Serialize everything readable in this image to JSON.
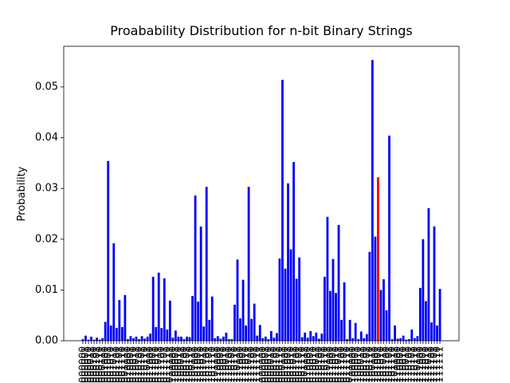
{
  "chart_data": {
    "type": "bar",
    "title": "Proabability Distribution for n-bit Binary Strings",
    "y_label": "Probability",
    "categories": [
      "0000000",
      "0000001",
      "0000010",
      "0000011",
      "0000100",
      "0000101",
      "0000110",
      "0000111",
      "0001000",
      "0001001",
      "0001010",
      "0001011",
      "0001100",
      "0001101",
      "0001110",
      "0001111",
      "0010000",
      "0010001",
      "0010010",
      "0010011",
      "0010100",
      "0010101",
      "0010110",
      "0010111",
      "0011000",
      "0011001",
      "0011010",
      "0011011",
      "0011100",
      "0011101",
      "0011110",
      "0011111",
      "0100000",
      "0100001",
      "0100010",
      "0100011",
      "0100100",
      "0100101",
      "0100110",
      "0100111",
      "0101000",
      "0101001",
      "0101010",
      "0101011",
      "0101100",
      "0101101",
      "0101110",
      "0101111",
      "0110000",
      "0110001",
      "0110010",
      "0110011",
      "0110100",
      "0110101",
      "0110110",
      "0110111",
      "0111000",
      "0111001",
      "0111010",
      "0111011",
      "0111100",
      "0111101",
      "0111110",
      "0111111",
      "1000000",
      "1000001",
      "1000010",
      "1000011",
      "1000100",
      "1000101",
      "1000110",
      "1000111",
      "1001000",
      "1001001",
      "1001010",
      "1001011",
      "1001100",
      "1001101",
      "1001110",
      "1001111",
      "1010000",
      "1010001",
      "1010010",
      "1010011",
      "1010100",
      "1010101",
      "1010110",
      "1010111",
      "1011000",
      "1011001",
      "1011010",
      "1011011",
      "1011100",
      "1011101",
      "1011110",
      "1011111",
      "1100000",
      "1100001",
      "1100010",
      "1100011",
      "1100100",
      "1100101",
      "1100110",
      "1100111",
      "1101000",
      "1101001",
      "1101010",
      "1101011",
      "1101100",
      "1101101",
      "1101110",
      "1101111",
      "1110000",
      "1110001",
      "1110010",
      "1110011",
      "1110100",
      "1110101",
      "1110110",
      "1110111",
      "1111000",
      "1111001",
      "1111010",
      "1111011",
      "1111100",
      "1111101",
      "1111110",
      "1111111"
    ],
    "values": [
      0.0003,
      0.001,
      0.0002,
      0.0008,
      0.0002,
      0.0006,
      0.0002,
      0.0005,
      0.0037,
      0.0354,
      0.003,
      0.0192,
      0.0025,
      0.008,
      0.0027,
      0.009,
      0.0003,
      0.0009,
      0.0005,
      0.0008,
      0.0003,
      0.0009,
      0.0004,
      0.0008,
      0.0014,
      0.0126,
      0.0027,
      0.0134,
      0.0025,
      0.0123,
      0.0022,
      0.0079,
      0.0006,
      0.002,
      0.0008,
      0.0008,
      0.0003,
      0.0008,
      0.0007,
      0.0088,
      0.0286,
      0.0077,
      0.0225,
      0.0028,
      0.0303,
      0.0041,
      0.0087,
      0.0005,
      0.0009,
      0.0004,
      0.0008,
      0.0016,
      0.0003,
      0.0003,
      0.0071,
      0.016,
      0.0044,
      0.012,
      0.003,
      0.0303,
      0.0043,
      0.0073,
      0.001,
      0.0031,
      0.0005,
      0.0008,
      0.0003,
      0.0019,
      0.0006,
      0.0015,
      0.0162,
      0.0514,
      0.0142,
      0.031,
      0.018,
      0.0352,
      0.0122,
      0.0164,
      0.0007,
      0.0016,
      0.0006,
      0.0019,
      0.0009,
      0.0016,
      0.0004,
      0.0014,
      0.0126,
      0.0244,
      0.0098,
      0.0161,
      0.0094,
      0.0228,
      0.0041,
      0.0115,
      0.0003,
      0.0041,
      0.0005,
      0.0035,
      0.0003,
      0.0018,
      0.0005,
      0.0013,
      0.0175,
      0.0553,
      0.0205,
      0.0322,
      0.01,
      0.0121,
      0.006,
      0.0404,
      0.0003,
      0.003,
      0.0004,
      0.0005,
      0.001,
      0.0002,
      0.0003,
      0.0022,
      0.0005,
      0.0009,
      0.0104,
      0.02,
      0.0078,
      0.0261,
      0.0036,
      0.0225,
      0.003,
      0.0102
    ],
    "color": "#0000ff",
    "highlight": {
      "index": 105,
      "color": "#ff0000"
    },
    "ylim": [
      0,
      0.058
    ],
    "yticks": [
      {
        "value": 0,
        "label": "0.00"
      },
      {
        "value": 0.01,
        "label": "0.01"
      },
      {
        "value": 0.02,
        "label": "0.02"
      },
      {
        "value": 0.03,
        "label": "0.03"
      },
      {
        "value": 0.04,
        "label": "0.04"
      },
      {
        "value": 0.05,
        "label": "0.05"
      }
    ],
    "grid": false
  }
}
